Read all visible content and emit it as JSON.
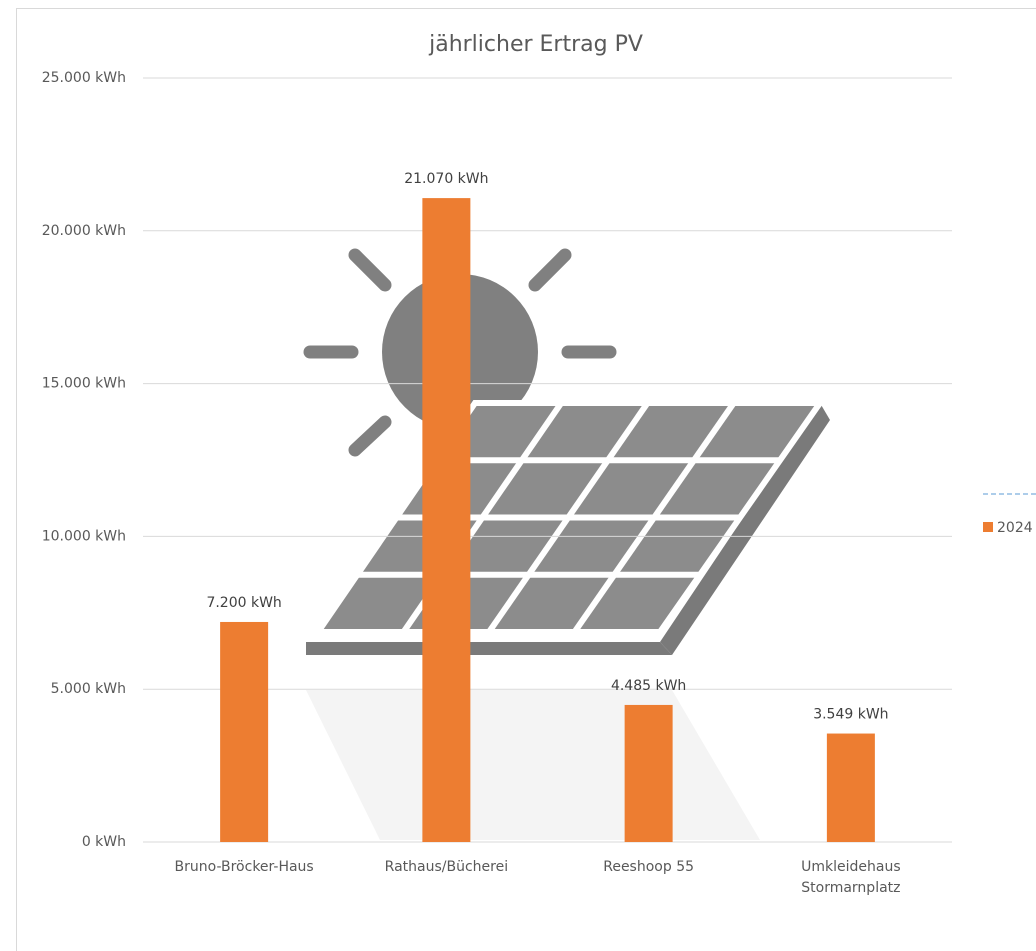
{
  "chart_data": {
    "type": "bar",
    "title": "jährlicher Ertrag PV",
    "categories": [
      "Bruno-Bröcker-Haus",
      "Rathaus/Bücherei",
      "Reeshoop 55",
      "Umkleidehaus Stormarnplatz"
    ],
    "series": [
      {
        "name": "2024",
        "color": "#ed7d31",
        "values": [
          7200,
          21070,
          4485,
          3549
        ],
        "value_labels": [
          "7.200 kWh",
          "21.070 kWh",
          "4.485 kWh",
          "3.549 kWh"
        ]
      }
    ],
    "ylim": [
      0,
      25000
    ],
    "yticks": [
      {
        "value": 0,
        "label": "0 kWh"
      },
      {
        "value": 5000,
        "label": "5.000 kWh"
      },
      {
        "value": 10000,
        "label": "10.000 kWh"
      },
      {
        "value": 15000,
        "label": "15.000 kWh"
      },
      {
        "value": 20000,
        "label": "20.000 kWh"
      },
      {
        "value": 25000,
        "label": "25.000 kWh"
      }
    ],
    "grid": true,
    "legend": "right"
  }
}
